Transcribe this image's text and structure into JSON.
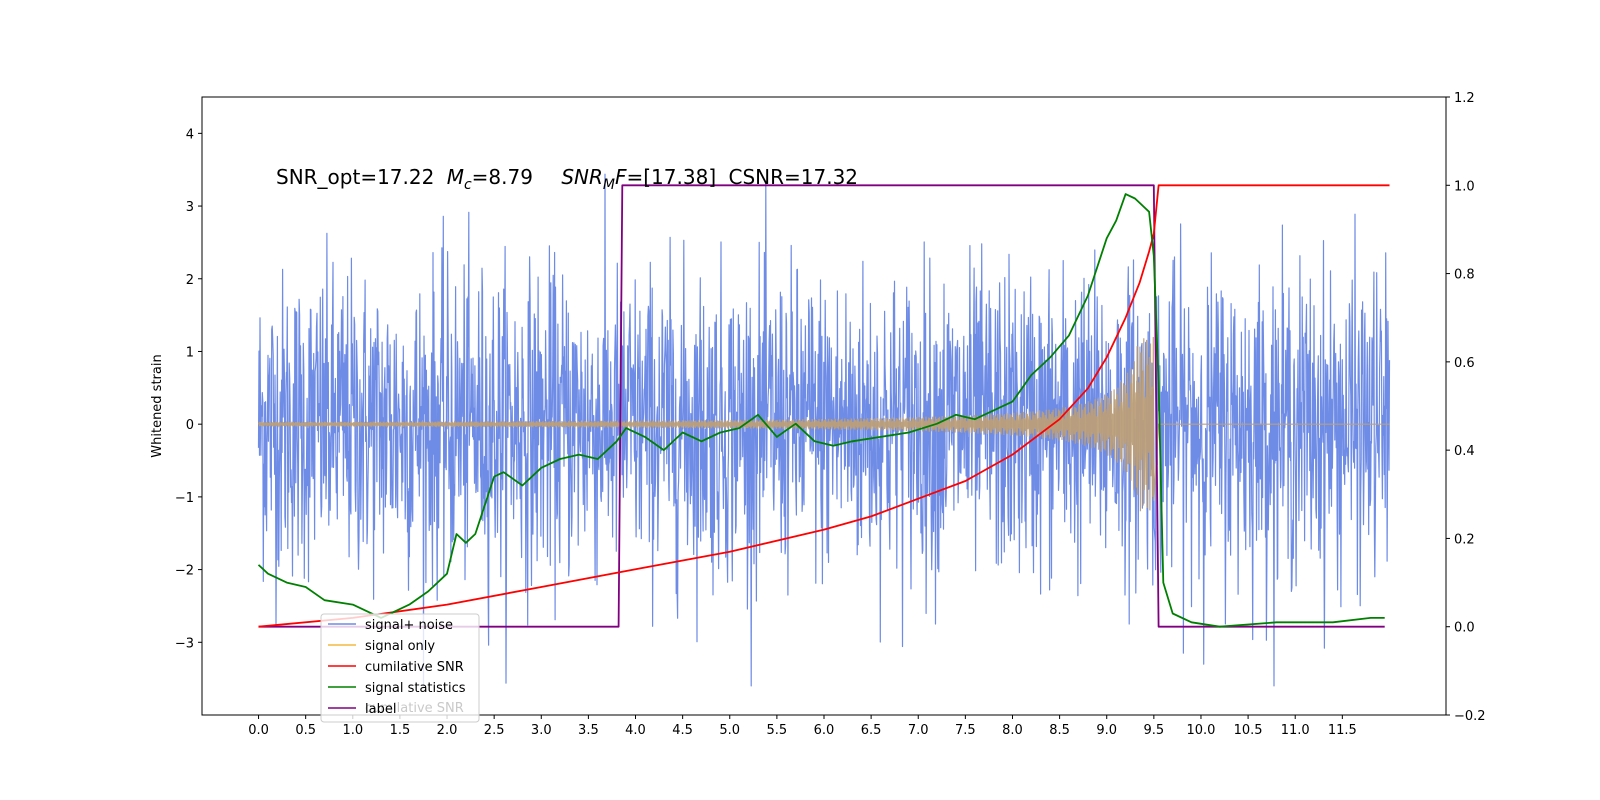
{
  "chart_data": {
    "type": "line",
    "title": "",
    "annotation": {
      "snr_opt": "SNR_opt=17.22",
      "mc_symbol": "M",
      "mc_sub": "c",
      "mc_value": "=8.79",
      "snr_mf_symbol": "SNR",
      "snr_mf_sub": "M",
      "snr_mf_rest_italic": "F",
      "snr_mf_value": "=[17.38]",
      "csnr": "CSNR=17.32"
    },
    "xlabel": "",
    "ylabel": "Whitened strain",
    "xlim": [
      -0.6,
      12.6
    ],
    "ylim_left": [
      -4.0,
      4.5
    ],
    "ylim_right": [
      -0.2,
      1.2
    ],
    "x_ticks": [
      "0.0",
      "0.5",
      "1.0",
      "1.5",
      "2.0",
      "2.5",
      "3.0",
      "3.5",
      "4.0",
      "4.5",
      "5.0",
      "5.5",
      "6.0",
      "6.5",
      "7.0",
      "7.5",
      "8.0",
      "8.5",
      "9.0",
      "9.5",
      "10.0",
      "10.5",
      "11.0",
      "11.5"
    ],
    "y_ticks_left": [
      "−3",
      "−2",
      "−1",
      "0",
      "1",
      "2",
      "3",
      "4"
    ],
    "y_ticks_right": [
      "−0.2",
      "0.0",
      "0.2",
      "0.4",
      "0.6",
      "0.8",
      "1.0",
      "1.2"
    ],
    "colors": {
      "signal_noise": "#6e8ce6",
      "signal_only": "#f4b942",
      "signal_overlap": "#bc9f78",
      "cumulative_snr": "#ff0000",
      "signal_statistics": "#008000",
      "label": "#800080"
    },
    "noise_envelope": {
      "x_range": [
        0.0,
        12.0
      ],
      "typical_band": [
        -1.5,
        1.5
      ],
      "extremes": [
        -3.6,
        4.1
      ]
    },
    "signal_only": {
      "start": 0.0,
      "merger": 9.5,
      "end": 12.0,
      "amplitude_start": 0.03,
      "amplitude_peak": 1.2
    },
    "series": [
      {
        "name": "cumilative SNR",
        "axis": "right",
        "x": [
          0.0,
          1.0,
          2.0,
          3.0,
          4.0,
          5.0,
          6.0,
          6.5,
          7.0,
          7.5,
          8.0,
          8.5,
          8.8,
          9.0,
          9.2,
          9.35,
          9.45,
          9.5,
          9.55,
          12.0
        ],
        "y": [
          0.0,
          0.02,
          0.05,
          0.09,
          0.13,
          0.17,
          0.22,
          0.25,
          0.29,
          0.33,
          0.39,
          0.47,
          0.54,
          0.61,
          0.7,
          0.78,
          0.85,
          0.89,
          1.0,
          1.0
        ]
      },
      {
        "name": "signal statistics",
        "axis": "right",
        "x": [
          0.0,
          0.1,
          0.3,
          0.5,
          0.7,
          1.0,
          1.3,
          1.6,
          1.8,
          2.0,
          2.1,
          2.2,
          2.3,
          2.5,
          2.6,
          2.8,
          3.0,
          3.2,
          3.4,
          3.6,
          3.8,
          3.9,
          4.1,
          4.3,
          4.5,
          4.7,
          4.9,
          5.1,
          5.3,
          5.5,
          5.7,
          5.9,
          6.1,
          6.3,
          6.6,
          6.9,
          7.2,
          7.4,
          7.6,
          7.8,
          8.0,
          8.2,
          8.4,
          8.6,
          8.8,
          9.0,
          9.1,
          9.2,
          9.3,
          9.4,
          9.45,
          9.5,
          9.55,
          9.6,
          9.7,
          9.9,
          10.2,
          10.8,
          11.4,
          11.8,
          11.95
        ],
        "y": [
          0.14,
          0.12,
          0.1,
          0.09,
          0.06,
          0.05,
          0.02,
          0.05,
          0.08,
          0.12,
          0.21,
          0.19,
          0.21,
          0.34,
          0.35,
          0.32,
          0.36,
          0.38,
          0.39,
          0.38,
          0.42,
          0.45,
          0.43,
          0.4,
          0.44,
          0.42,
          0.44,
          0.45,
          0.48,
          0.43,
          0.46,
          0.42,
          0.41,
          0.42,
          0.43,
          0.44,
          0.46,
          0.48,
          0.47,
          0.49,
          0.51,
          0.57,
          0.61,
          0.66,
          0.75,
          0.88,
          0.92,
          0.98,
          0.97,
          0.95,
          0.94,
          0.84,
          0.55,
          0.1,
          0.03,
          0.01,
          0.0,
          0.01,
          0.01,
          0.02,
          0.02
        ]
      },
      {
        "name": "label",
        "axis": "right",
        "x": [
          0.0,
          3.82,
          3.86,
          9.5,
          9.55,
          11.95
        ],
        "y": [
          0.0,
          0.0,
          1.0,
          1.0,
          0.0,
          0.0
        ]
      }
    ],
    "legend": {
      "placement": "lower-left",
      "entries": [
        {
          "label": "signal+ noise",
          "color": "#6e8ce6"
        },
        {
          "label": "signal only",
          "color": "#f4b942"
        },
        {
          "label": "cumilative SNR",
          "color": "#ff0000"
        },
        {
          "label": "signal statistics",
          "color": "#008000"
        },
        {
          "label": "label",
          "color": "#800080"
        }
      ],
      "ghost_text": "cumilative SNR"
    }
  }
}
